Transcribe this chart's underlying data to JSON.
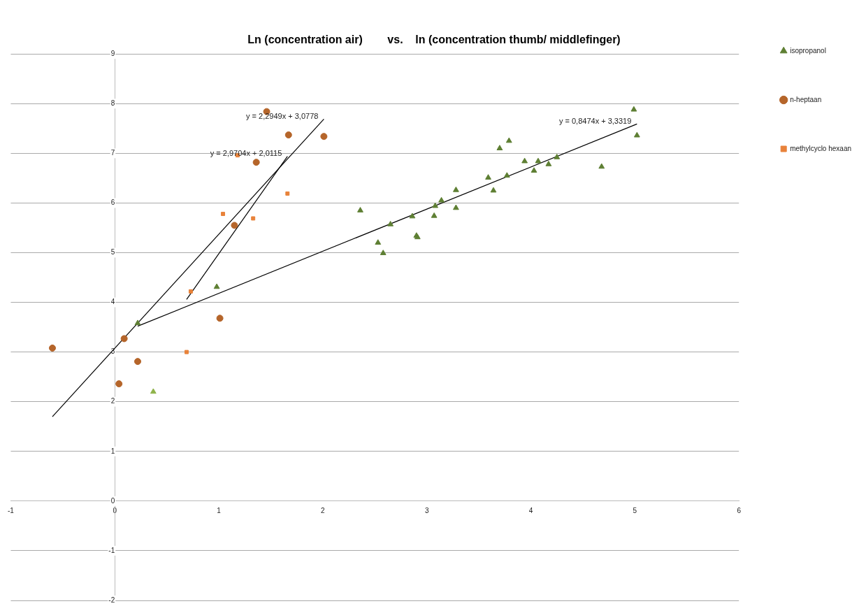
{
  "chart_data": {
    "type": "scatter",
    "title": "Ln (concentration air)        vs.    ln (concentration thumb/ middlefinger)",
    "xlim": [
      -1,
      6
    ],
    "xticks": [
      -1,
      0,
      1,
      2,
      3,
      4,
      5,
      6
    ],
    "ylim": [
      -2,
      9
    ],
    "yticks": [
      -2,
      -1,
      0,
      1,
      2,
      3,
      4,
      5,
      6,
      7,
      8,
      9
    ],
    "grid": "y",
    "legend": "top right",
    "series": [
      {
        "name": "isopropanol",
        "marker": "triangle",
        "color": "#5e7f33",
        "colors": [
          "#5e7f33",
          "#8fb34a",
          "#5e7f33",
          "#5e7f33",
          "#5e7f33",
          "#5e7f33",
          "#5e7f33",
          "#5e7f33",
          "#5e7f33",
          "#5e7f33",
          "#5e7f33",
          "#5e7f33",
          "#5e7f33",
          "#5e7f33",
          "#5e7f33",
          "#5e7f33",
          "#5e7f33",
          "#5e7f33",
          "#5e7f33",
          "#5e7f33",
          "#5e7f33",
          "#5e7f33",
          "#5e7f33",
          "#5e7f33",
          "#5e7f33",
          "#5e7f33",
          "#5e7f33",
          "#5e7f33"
        ],
        "x": [
          0.22,
          0.37,
          0.98,
          2.36,
          2.53,
          2.58,
          2.65,
          2.86,
          2.9,
          2.91,
          3.07,
          3.08,
          3.14,
          3.28,
          3.28,
          3.59,
          3.64,
          3.7,
          3.77,
          3.79,
          3.94,
          4.03,
          4.07,
          4.17,
          4.25,
          4.68,
          4.99,
          5.02
        ],
        "values": [
          3.58,
          2.2,
          4.31,
          5.85,
          5.2,
          4.99,
          5.57,
          5.73,
          5.34,
          5.31,
          5.74,
          5.94,
          6.05,
          6.26,
          5.9,
          6.51,
          6.25,
          7.1,
          6.55,
          7.25,
          6.84,
          6.65,
          6.84,
          6.78,
          6.92,
          6.73,
          7.88,
          7.36
        ]
      },
      {
        "name": "n-heptaan",
        "marker": "circle",
        "color": "#b5652a",
        "x": [
          -0.6,
          0.04,
          0.09,
          0.22,
          1.01,
          1.15,
          1.36,
          1.46,
          1.67,
          2.01
        ],
        "values": [
          3.08,
          2.36,
          3.27,
          2.81,
          3.68,
          5.55,
          6.82,
          7.84,
          7.37,
          7.34
        ]
      },
      {
        "name": "methylcyclo hexaan",
        "marker": "square",
        "color": "#e8823a",
        "x": [
          0.69,
          0.73,
          1.04,
          1.18,
          1.33,
          1.66
        ],
        "values": [
          3.0,
          4.22,
          5.78,
          6.96,
          5.69,
          6.19
        ]
      },
      {
        "type": "line",
        "marker": "none",
        "line_style": "solid",
        "color": "#000000",
        "x": [
          0.22,
          5.02
        ],
        "values": [
          3.52,
          7.59
        ]
      },
      {
        "type": "line",
        "marker": "none",
        "line_style": "solid",
        "color": "#000000",
        "x": [
          -0.6,
          2.01
        ],
        "values": [
          1.7,
          7.69
        ]
      },
      {
        "type": "line",
        "marker": "none",
        "line_style": "solid",
        "color": "#000000",
        "x": [
          0.69,
          1.66
        ],
        "values": [
          4.06,
          6.94
        ]
      }
    ],
    "annotations": [
      "y = 0,8474x + 3,3319",
      "y = 2,2949x + 3,0778",
      "y = 2,9704x + 2,0115"
    ]
  }
}
